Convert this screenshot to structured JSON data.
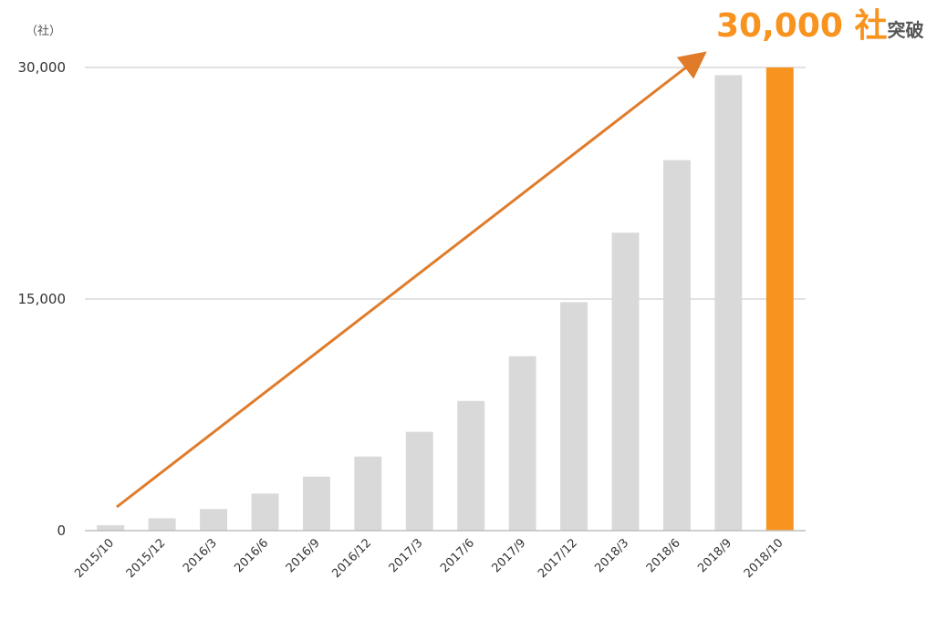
{
  "chart_data": {
    "type": "bar",
    "ylabel": "（社）",
    "ylim": [
      0,
      30000
    ],
    "yticks": [
      "0",
      "15,000",
      "30,000"
    ],
    "ytick_values": [
      0,
      15000,
      30000
    ],
    "grid": true,
    "categories": [
      "2015/10",
      "2015/12",
      "2016/3",
      "2016/6",
      "2016/9",
      "2016/12",
      "2017/3",
      "2017/6",
      "2017/9",
      "2017/12",
      "2018/3",
      "2018/6",
      "2018/9",
      "2018/10"
    ],
    "values": [
      350,
      800,
      1400,
      2400,
      3500,
      4800,
      6400,
      8400,
      11300,
      14800,
      19300,
      24000,
      29500,
      30000
    ],
    "bar_color": "#d9d9d9",
    "highlight_index": 13,
    "highlight_color": "#f7931e",
    "arrow_color": "#e07b29",
    "annotation": {
      "value": "30,000 社",
      "suffix": "突破",
      "color": "#f7931e"
    }
  }
}
